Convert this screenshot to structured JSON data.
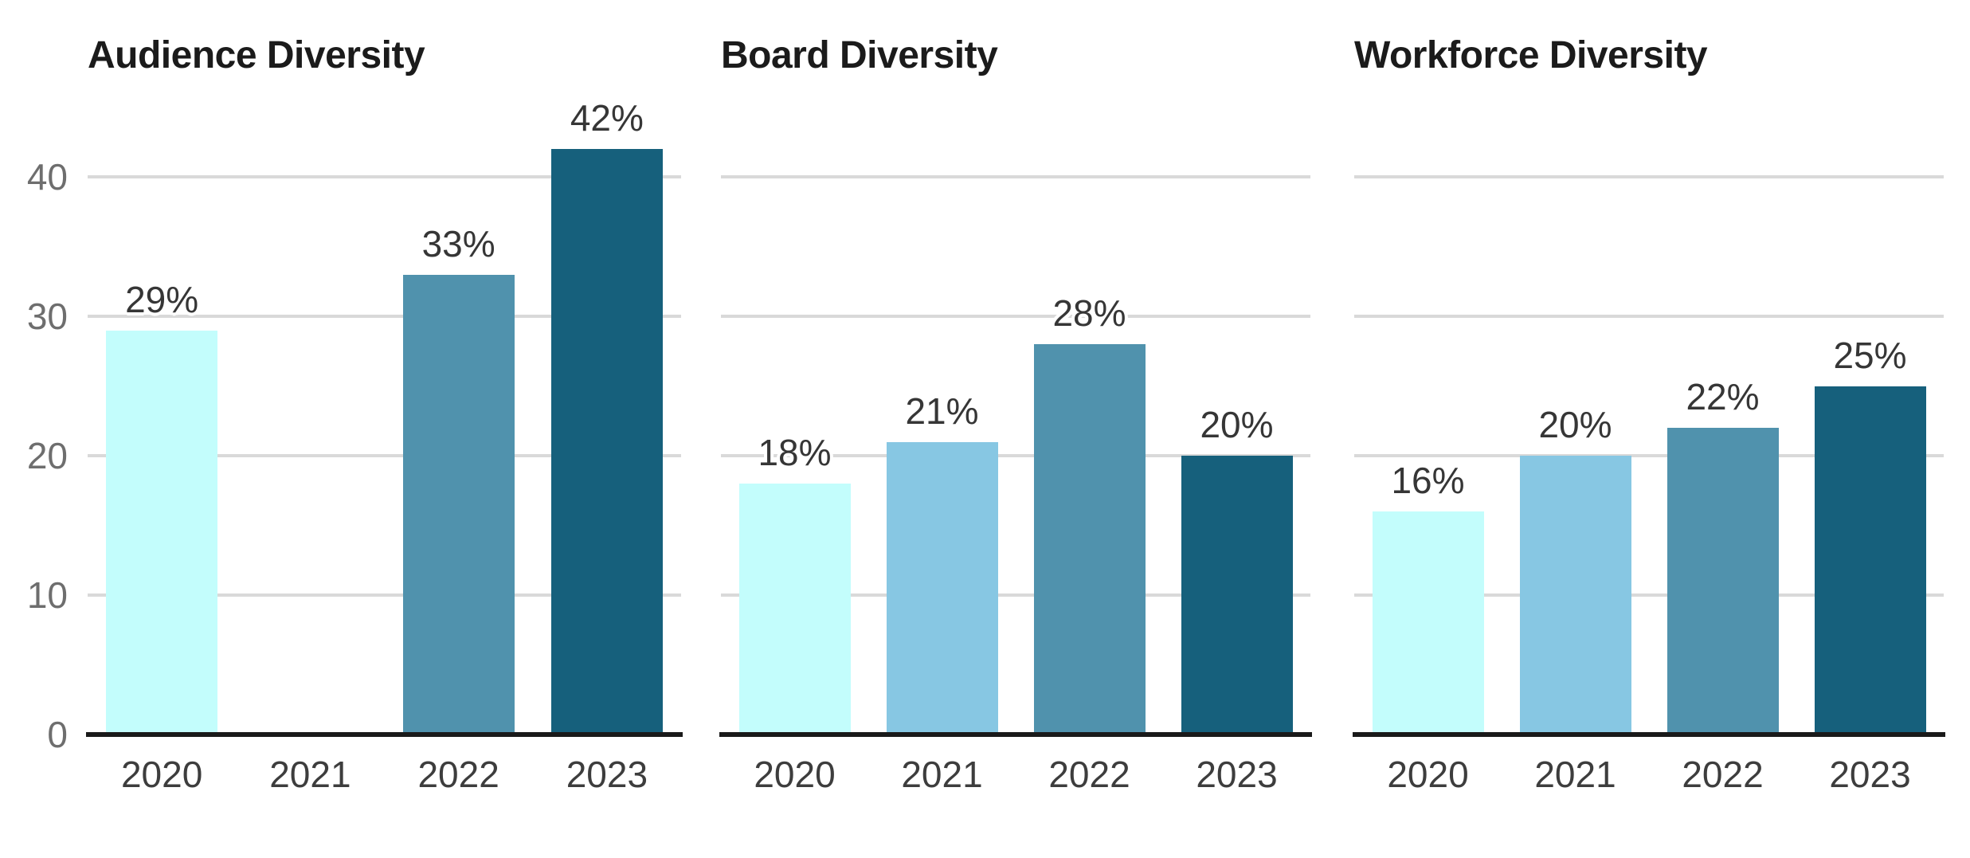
{
  "page": {
    "background": "#ffffff"
  },
  "styles": {
    "bar_palette": [
      "#c3fdfc",
      "#87c7e3",
      "#5092ad",
      "#16607c"
    ],
    "gridline_color": "#d9d9d9",
    "axis_line_color": "#1a1a1a",
    "title_color": "#1b1b1b",
    "value_label_color": "#363636",
    "year_label_color": "#3d3d3d",
    "ytick_label_color": "#6e6e6e"
  },
  "chart_data": [
    {
      "type": "bar",
      "title": "Audience Diversity",
      "categories": [
        "2020",
        "2021",
        "2022",
        "2023"
      ],
      "values": [
        29,
        null,
        33,
        42
      ],
      "value_labels": [
        "29%",
        null,
        "33%",
        "42%"
      ],
      "xlabel": "",
      "ylabel": "",
      "ylim": [
        0,
        45
      ],
      "y_ticks": [
        0,
        10,
        20,
        30,
        40
      ],
      "y_tick_labels_visible": true,
      "grid": "horizontal",
      "legend": "none"
    },
    {
      "type": "bar",
      "title": "Board Diversity",
      "categories": [
        "2020",
        "2021",
        "2022",
        "2023"
      ],
      "values": [
        18,
        21,
        28,
        20
      ],
      "value_labels": [
        "18%",
        "21%",
        "28%",
        "20%"
      ],
      "xlabel": "",
      "ylabel": "",
      "ylim": [
        0,
        45
      ],
      "y_ticks": [
        0,
        10,
        20,
        30,
        40
      ],
      "y_tick_labels_visible": false,
      "grid": "horizontal",
      "legend": "none"
    },
    {
      "type": "bar",
      "title": "Workforce Diversity",
      "categories": [
        "2020",
        "2021",
        "2022",
        "2023"
      ],
      "values": [
        16,
        20,
        22,
        25
      ],
      "value_labels": [
        "16%",
        "20%",
        "22%",
        "25%"
      ],
      "xlabel": "",
      "ylabel": "",
      "ylim": [
        0,
        45
      ],
      "y_ticks": [
        0,
        10,
        20,
        30,
        40
      ],
      "y_tick_labels_visible": false,
      "grid": "horizontal",
      "legend": "none"
    }
  ]
}
